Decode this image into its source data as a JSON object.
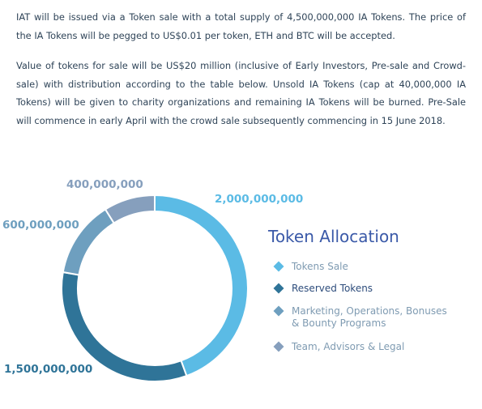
{
  "paragraphs": [
    "IAT will be issued via a Token sale with a total supply of 4,500,000,000 IA Tokens. The price of the IA Tokens will be pegged to US$0.01 per token, ETH and BTC will be accepted.",
    "Value of tokens for sale will be US$20 million (inclusive of Early Investors, Pre-sale and Crowd-sale) with distribution according to the table below. Unsold IA Tokens (cap at 40,000,000 IA Tokens) will be given to charity organizations and remaining IA Tokens will be burned. Pre-Sale will commence in early April with the crowd sale subsequently commencing in 15 June 2018."
  ],
  "chart_data": {
    "type": "pie",
    "variant": "donut",
    "title": "Token Allocation",
    "series": [
      {
        "name": "Tokens Sale",
        "value": 2000000000,
        "label": "2,000,000,000",
        "color": "#5bbbe5"
      },
      {
        "name": "Reserved Tokens",
        "value": 1500000000,
        "label": "1,500,000,000",
        "color": "#2f7498"
      },
      {
        "name": "Marketing, Operations, Bonuses & Bounty Programs",
        "legend_lines": [
          "Marketing, Operations, Bonuses",
          "& Bounty Programs"
        ],
        "value": 600000000,
        "label": "600,000,000",
        "color": "#6e9fbf"
      },
      {
        "name": "Team, Advisors & Legal",
        "value": 400000000,
        "label": "400,000,000",
        "color": "#869fbd"
      }
    ],
    "legend_position": "right",
    "title_color": "#3a59a8",
    "legend_text_color": "#7f9bb2",
    "legend_highlight_color": "#2e4d7c"
  }
}
